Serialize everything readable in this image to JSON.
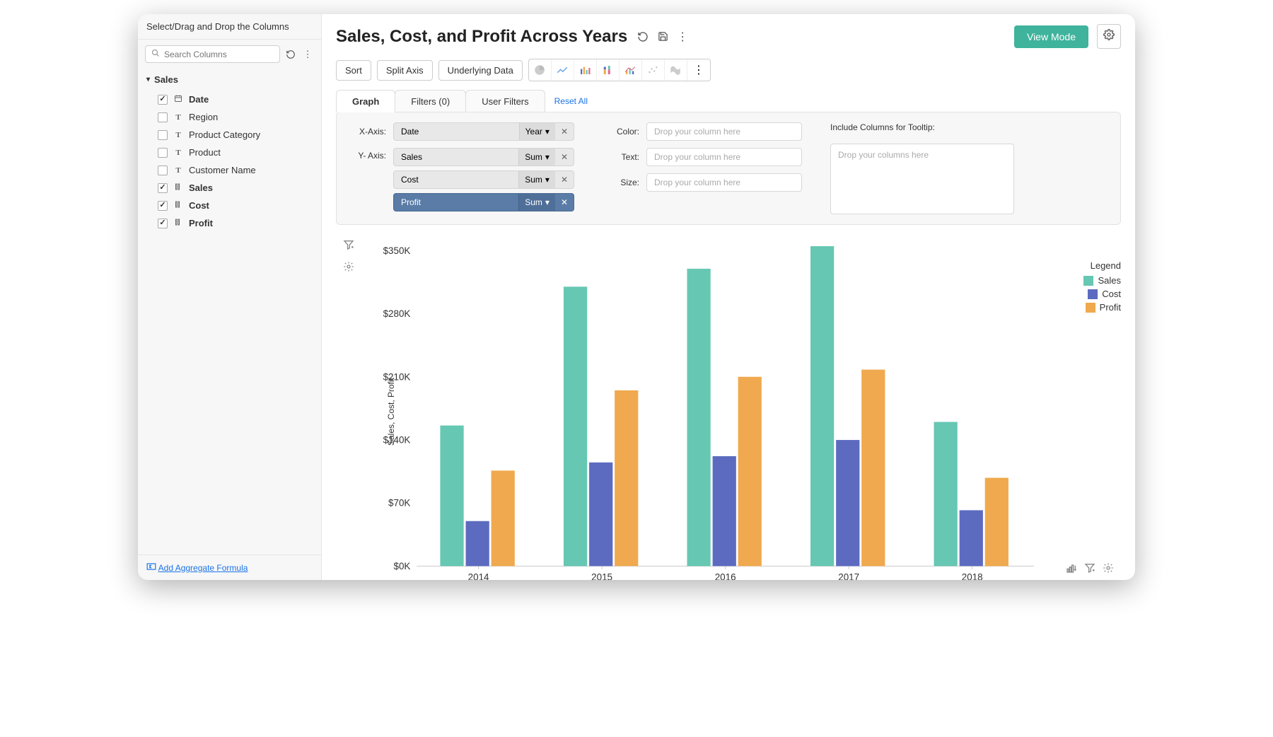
{
  "sidebar": {
    "header": "Select/Drag and Drop the Columns",
    "search_placeholder": "Search Columns",
    "group_name": "Sales",
    "columns": [
      {
        "name": "Date",
        "type": "date",
        "checked": true
      },
      {
        "name": "Region",
        "type": "text",
        "checked": false
      },
      {
        "name": "Product Category",
        "type": "text",
        "checked": false
      },
      {
        "name": "Product",
        "type": "text",
        "checked": false
      },
      {
        "name": "Customer Name",
        "type": "text",
        "checked": false
      },
      {
        "name": "Sales",
        "type": "number",
        "checked": true
      },
      {
        "name": "Cost",
        "type": "number",
        "checked": true
      },
      {
        "name": "Profit",
        "type": "number",
        "checked": true
      }
    ],
    "footer_link": "Add Aggregate Formula"
  },
  "header": {
    "title": "Sales, Cost, and Profit Across Years",
    "view_mode": "View Mode"
  },
  "toolbar": {
    "sort": "Sort",
    "split_axis": "Split Axis",
    "underlying_data": "Underlying Data"
  },
  "tabs": {
    "graph": "Graph",
    "filters": "Filters  (0)",
    "user_filters": "User Filters",
    "reset": "Reset All"
  },
  "config": {
    "x_axis_label": "X-Axis:",
    "y_axis_label": "Y- Axis:",
    "x_pill": {
      "name": "Date",
      "agg": "Year"
    },
    "y_pills": [
      {
        "name": "Sales",
        "agg": "Sum",
        "active": false
      },
      {
        "name": "Cost",
        "agg": "Sum",
        "active": false
      },
      {
        "name": "Profit",
        "agg": "Sum",
        "active": true
      }
    ],
    "color_label": "Color:",
    "text_label": "Text:",
    "size_label": "Size:",
    "drop_placeholder": "Drop your column here",
    "tooltip_label": "Include Columns for Tooltip:",
    "tooltip_placeholder": "Drop your columns here"
  },
  "chart": {
    "type": "grouped-bar",
    "y_title": "Sales, Cost, Profit",
    "y_ticks": [
      0,
      70,
      140,
      210,
      280,
      350
    ],
    "y_tick_labels": [
      "$0K",
      "$70K",
      "$140K",
      "$210K",
      "$280K",
      "$350K"
    ],
    "ymax": 360,
    "categories": [
      "2014",
      "2015",
      "2016",
      "2017",
      "2018"
    ],
    "series": [
      {
        "name": "Sales",
        "color": "#66c7b3",
        "values": [
          156,
          310,
          330,
          355,
          160
        ]
      },
      {
        "name": "Cost",
        "color": "#5c6bc0",
        "values": [
          50,
          115,
          122,
          140,
          62
        ]
      },
      {
        "name": "Profit",
        "color": "#f0a94e",
        "values": [
          106,
          195,
          210,
          218,
          98
        ]
      }
    ],
    "background": "#ffffff",
    "axis_color": "#cccccc",
    "tick_fontsize": 12,
    "bar_group_width": 0.62,
    "legend_title": "Legend"
  }
}
